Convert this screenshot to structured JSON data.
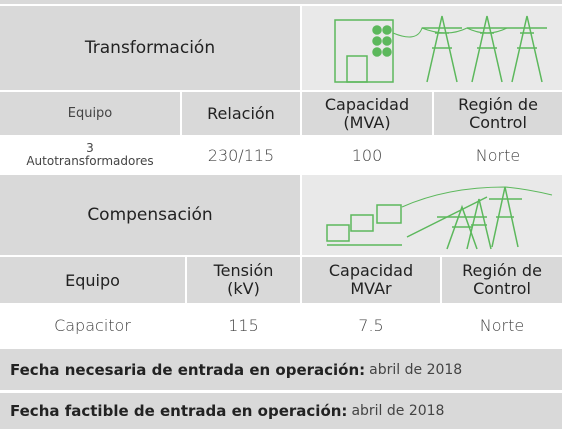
{
  "transformacion": {
    "title": "Transformación",
    "headers": [
      "Equipo",
      "Relación",
      "Capacidad\n(MVA)",
      "Región de\nControl"
    ],
    "row": [
      "3\nAutotransformadores",
      "230/115",
      "100",
      "Norte"
    ]
  },
  "compensacion": {
    "title": "Compensación",
    "headers": [
      "Equipo",
      "Tensión\n(kV)",
      "Capacidad\nMVAr",
      "Región de\nControl"
    ],
    "row": [
      "Capacitor",
      "115",
      "7.5",
      "Norte"
    ]
  },
  "fechas": [
    {
      "label": "Fecha necesaria de entrada en operación:",
      "value": "abril de 2018"
    },
    {
      "label": "Fecha factible de entrada en operación:",
      "value": "abril de 2018"
    }
  ]
}
